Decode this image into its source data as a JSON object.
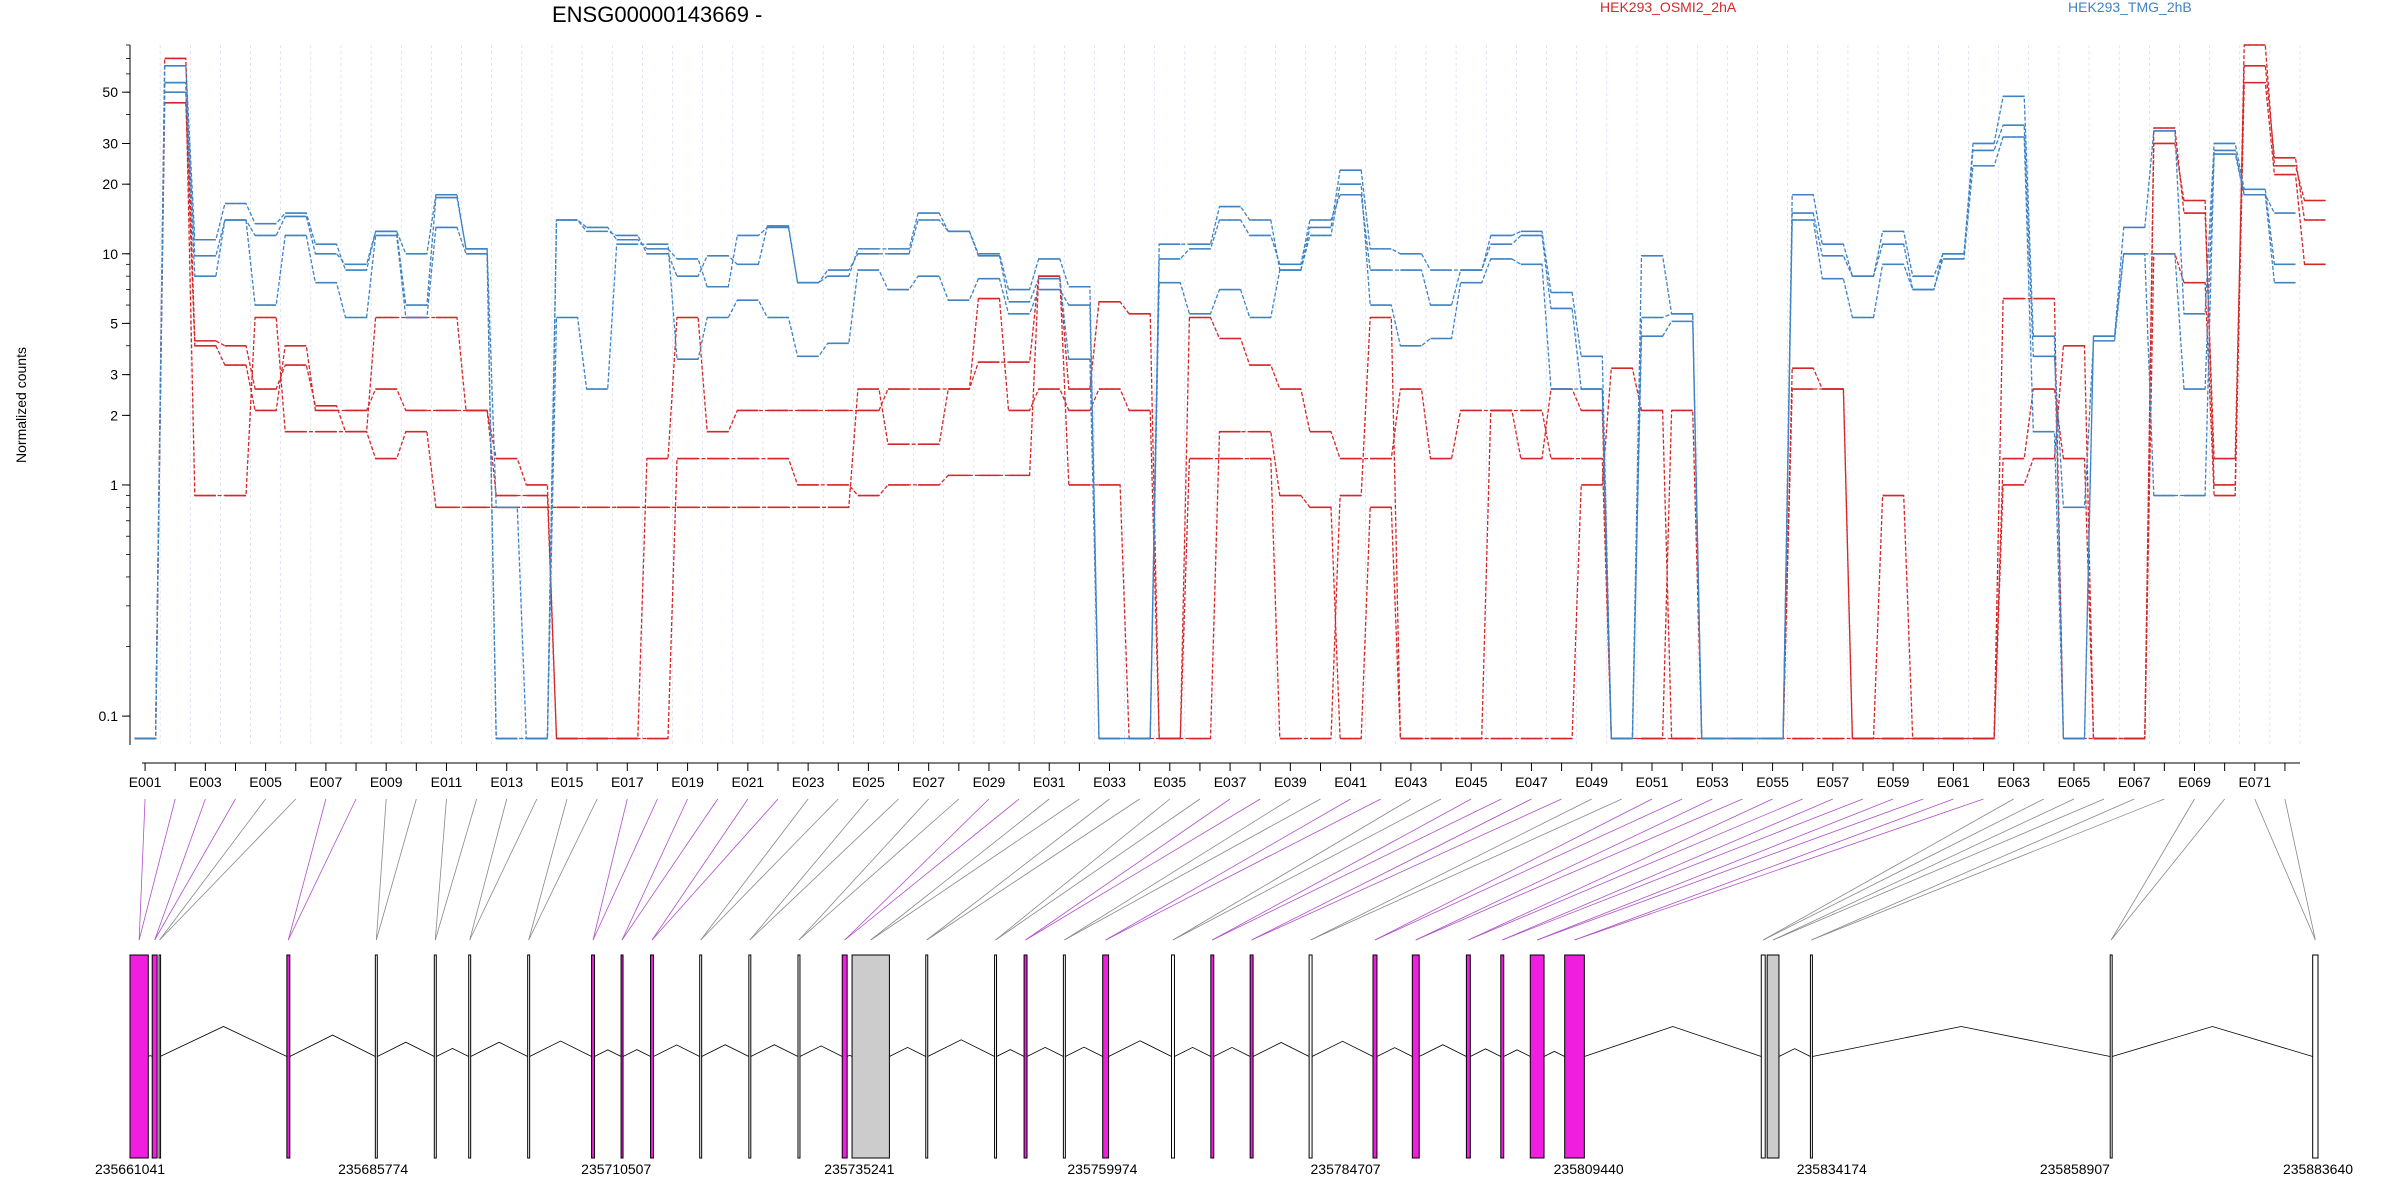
{
  "chart_data": {
    "type": "line",
    "title": "ENSG00000143669 -",
    "ylabel": "Normalized counts",
    "yscale": "log",
    "yticks": [
      0.1,
      1,
      2,
      3,
      5,
      10,
      20,
      30,
      50
    ],
    "ylim": [
      0.075,
      80
    ],
    "xtick_labels": [
      "E001",
      "E003",
      "E005",
      "E007",
      "E009",
      "E011",
      "E013",
      "E015",
      "E017",
      "E019",
      "E021",
      "E023",
      "E025",
      "E027",
      "E029",
      "E031",
      "E033",
      "E035",
      "E037",
      "E039",
      "E041",
      "E043",
      "E045",
      "E047",
      "E049",
      "E051",
      "E053",
      "E055",
      "E057",
      "E059",
      "E061",
      "E063",
      "E065",
      "E067",
      "E069",
      "E071"
    ],
    "exon_count": 72,
    "legend": [
      {
        "name": "HEK293_OSMI2_2hA",
        "color": "#d62728"
      },
      {
        "name": "HEK293_TMG_2hB",
        "color": "#3f83c4"
      }
    ],
    "series": [
      {
        "group": "HEK293_OSMI2_2hA",
        "color": "#d62728",
        "values": [
          0.08,
          70,
          4.2,
          4.0,
          2.6,
          3.3,
          2.2,
          1.7,
          1.3,
          1.7,
          0.8,
          0.8,
          0.8,
          0.8,
          0.8,
          0.8,
          0.8,
          0.8,
          0.8,
          0.8,
          0.8,
          0.8,
          0.8,
          0.8,
          2.6,
          1.5,
          1.5,
          2.6,
          6.4,
          2.1,
          2.6,
          2.1,
          2.6,
          2.1,
          0.08,
          0.08,
          1.7,
          1.7,
          0.9,
          0.8,
          0.08,
          0.8,
          0.08,
          0.08,
          0.08,
          2.1,
          1.3,
          2.6,
          2.1,
          0.08,
          0.08,
          0.08,
          0.08,
          0.08,
          0.08,
          2.6,
          2.6,
          0.08,
          0.08,
          0.08,
          0.08,
          0.08,
          1.0,
          1.3,
          4.0,
          0.08,
          0.08,
          30,
          17,
          1.0,
          80,
          24,
          17
        ]
      },
      {
        "group": "HEK293_OSMI2_2hA",
        "color": "#d62728",
        "values": [
          0.08,
          45,
          4.0,
          3.3,
          2.1,
          4.0,
          2.1,
          2.1,
          2.6,
          2.1,
          2.1,
          2.1,
          1.3,
          1.0,
          0.08,
          0.08,
          0.08,
          1.3,
          5.3,
          1.7,
          2.1,
          2.1,
          2.1,
          2.1,
          2.1,
          2.6,
          2.6,
          2.6,
          3.4,
          3.4,
          8.0,
          2.6,
          6.2,
          5.5,
          0.08,
          5.3,
          4.3,
          3.3,
          2.6,
          1.7,
          1.3,
          1.3,
          2.6,
          1.3,
          2.1,
          2.1,
          2.1,
          1.3,
          1.3,
          0.08,
          0.08,
          2.1,
          0.08,
          0.08,
          0.08,
          3.2,
          2.6,
          0.08,
          0.9,
          0.08,
          0.08,
          0.08,
          1.3,
          2.6,
          1.3,
          0.08,
          0.08,
          35,
          15,
          1.3,
          65,
          26,
          14
        ]
      },
      {
        "group": "HEK293_OSMI2_2hA",
        "color": "#d62728",
        "values": [
          0.08,
          55,
          0.9,
          0.9,
          5.3,
          1.7,
          1.7,
          1.7,
          5.3,
          5.3,
          5.3,
          2.1,
          0.9,
          0.9,
          0.08,
          0.08,
          0.08,
          0.08,
          1.3,
          1.3,
          1.3,
          1.3,
          1.0,
          1.0,
          0.9,
          1.0,
          1.0,
          1.1,
          1.1,
          1.1,
          8.0,
          1.0,
          1.0,
          0.08,
          0.08,
          1.3,
          1.3,
          1.3,
          0.08,
          0.08,
          0.9,
          5.3,
          0.08,
          0.08,
          0.08,
          0.08,
          0.08,
          0.08,
          1.0,
          3.2,
          2.1,
          0.08,
          0.08,
          0.08,
          0.08,
          0.08,
          0.08,
          0.08,
          0.08,
          0.08,
          0.08,
          0.08,
          6.4,
          6.4,
          0.08,
          0.08,
          0.08,
          10,
          7.5,
          0.9,
          55,
          22,
          9
        ]
      },
      {
        "group": "HEK293_TMG_2hB",
        "color": "#3f83c4",
        "values": [
          0.08,
          55,
          9.8,
          14,
          12,
          14.5,
          10,
          9.0,
          12.5,
          10,
          18,
          10.5,
          0.08,
          0.08,
          14,
          12.5,
          12,
          10,
          8.0,
          9.8,
          9.0,
          13.2,
          7.5,
          8.5,
          10,
          10,
          14,
          12.5,
          9.8,
          6.2,
          7.8,
          3.5,
          0.08,
          0.08,
          11,
          11,
          16,
          14,
          8.5,
          13,
          23,
          10.5,
          10,
          8.5,
          8.5,
          12,
          12.5,
          6.8,
          3.6,
          0.08,
          9.8,
          5.5,
          0.08,
          0.08,
          0.08,
          18,
          11,
          8.0,
          12.5,
          8.0,
          10,
          30,
          48,
          4.4,
          0.08,
          4.4,
          13,
          34,
          5.5,
          30,
          19,
          9
        ]
      },
      {
        "group": "HEK293_TMG_2hB",
        "color": "#3f83c4",
        "values": [
          0.08,
          65,
          11.5,
          16.5,
          13.5,
          15,
          11,
          8.5,
          12.5,
          6.0,
          17.5,
          10.5,
          0.8,
          0.08,
          14,
          13,
          11.5,
          10.5,
          9.5,
          7.2,
          12,
          13,
          7.5,
          8.0,
          10.5,
          10.5,
          15,
          12.5,
          10,
          7.0,
          9.5,
          7.2,
          0.08,
          0.08,
          9.5,
          10.5,
          14,
          12,
          9.0,
          14,
          18,
          8.5,
          8.5,
          6.0,
          8.5,
          11,
          12,
          5.8,
          2.6,
          0.08,
          5.3,
          5.5,
          0.08,
          0.08,
          0.08,
          15,
          9.8,
          8.0,
          11,
          7.0,
          10,
          28,
          36,
          3.6,
          0.8,
          4.2,
          10,
          10,
          2.6,
          28,
          18,
          15
        ]
      },
      {
        "group": "HEK293_TMG_2hB",
        "color": "#3f83c4",
        "values": [
          0.08,
          50,
          8.0,
          14,
          6.0,
          12,
          7.5,
          5.3,
          12,
          5.3,
          13,
          10,
          0.08,
          0.08,
          5.3,
          2.6,
          11,
          11,
          3.5,
          5.3,
          6.3,
          5.3,
          3.6,
          4.1,
          8.5,
          7.0,
          8.0,
          6.3,
          7.8,
          5.5,
          7.0,
          6.0,
          0.08,
          0.08,
          7.5,
          5.5,
          7.0,
          5.3,
          8.5,
          12,
          20,
          6.0,
          4.0,
          4.3,
          7.5,
          9.5,
          9.0,
          2.6,
          2.6,
          0.08,
          4.4,
          5.1,
          0.08,
          0.08,
          0.08,
          14,
          7.8,
          5.3,
          9.0,
          7.0,
          9.5,
          24,
          32,
          1.7,
          0.08,
          4.4,
          10,
          0.9,
          0.9,
          27,
          18,
          7.5
        ]
      }
    ],
    "genomic_axis": {
      "labels": [
        "235661041",
        "235685774",
        "235710507",
        "235735241",
        "235759974",
        "235784707",
        "235809440",
        "235834174",
        "235858907",
        "235883640"
      ],
      "range": [
        235661041,
        235883640
      ]
    },
    "exons": [
      {
        "id": "E001",
        "start": 235661041,
        "end": 235662900,
        "highlight": true
      },
      {
        "id": "E002",
        "start": 235663300,
        "end": 235663800,
        "highlight": true
      },
      {
        "id": "E003",
        "start": 235664000,
        "end": 235664100,
        "highlight": false
      },
      {
        "id": "E005",
        "start": 235677000,
        "end": 235677300,
        "highlight": true
      },
      {
        "id": "E007",
        "start": 235686000,
        "end": 235686200,
        "highlight": false
      },
      {
        "id": "E009",
        "start": 235692000,
        "end": 235692200,
        "highlight": false
      },
      {
        "id": "E010",
        "start": 235695500,
        "end": 235695700,
        "highlight": false
      },
      {
        "id": "E011",
        "start": 235701500,
        "end": 235701700,
        "highlight": false
      },
      {
        "id": "E013",
        "start": 235708000,
        "end": 235708300,
        "highlight": true
      },
      {
        "id": "E015",
        "start": 235711000,
        "end": 235711200,
        "highlight": true
      },
      {
        "id": "E017",
        "start": 235714000,
        "end": 235714300,
        "highlight": true
      },
      {
        "id": "E019",
        "start": 235719000,
        "end": 235719200,
        "highlight": false
      },
      {
        "id": "E021",
        "start": 235724000,
        "end": 235724200,
        "highlight": false
      },
      {
        "id": "E023",
        "start": 235729000,
        "end": 235729200,
        "highlight": false
      },
      {
        "id": "E025",
        "start": 235733500,
        "end": 235734000,
        "highlight": true
      },
      {
        "id": "E026",
        "start": 235734500,
        "end": 235738300,
        "highlight": false,
        "shade": "gray"
      },
      {
        "id": "E027",
        "start": 235742000,
        "end": 235742200,
        "highlight": false
      },
      {
        "id": "E029",
        "start": 235749000,
        "end": 235749200,
        "highlight": false
      },
      {
        "id": "E031",
        "start": 235752000,
        "end": 235752300,
        "highlight": true
      },
      {
        "id": "E033",
        "start": 235756000,
        "end": 235756200,
        "highlight": false
      },
      {
        "id": "E035",
        "start": 235760000,
        "end": 235760600,
        "highlight": true
      },
      {
        "id": "E037",
        "start": 235767000,
        "end": 235767300,
        "highlight": false
      },
      {
        "id": "E039",
        "start": 235771000,
        "end": 235771300,
        "highlight": true
      },
      {
        "id": "E041",
        "start": 235775000,
        "end": 235775300,
        "highlight": true
      },
      {
        "id": "E043",
        "start": 235781000,
        "end": 235781300,
        "highlight": false
      },
      {
        "id": "E045",
        "start": 235787500,
        "end": 235787900,
        "highlight": true
      },
      {
        "id": "E047",
        "start": 235791500,
        "end": 235792200,
        "highlight": true
      },
      {
        "id": "E049",
        "start": 235797000,
        "end": 235797400,
        "highlight": true
      },
      {
        "id": "E051",
        "start": 235800500,
        "end": 235800800,
        "highlight": true
      },
      {
        "id": "E053",
        "start": 235803500,
        "end": 235804900,
        "highlight": true
      },
      {
        "id": "E054",
        "start": 235807000,
        "end": 235809000,
        "highlight": true
      },
      {
        "id": "E055",
        "start": 235827000,
        "end": 235827400,
        "highlight": false
      },
      {
        "id": "E056",
        "start": 235827600,
        "end": 235828800,
        "highlight": false,
        "shade": "gray"
      },
      {
        "id": "E057",
        "start": 235832000,
        "end": 235832200,
        "highlight": false
      },
      {
        "id": "E069",
        "start": 235862500,
        "end": 235862700,
        "highlight": false
      },
      {
        "id": "E072",
        "start": 235883100,
        "end": 235883640,
        "highlight": false,
        "shade": "outline"
      }
    ]
  }
}
